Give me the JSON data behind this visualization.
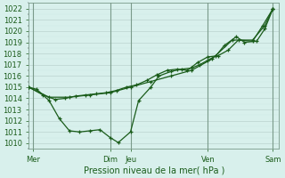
{
  "title": "",
  "xlabel": "Pression niveau de la mer( hPa )",
  "ylabel": "",
  "bg_color": "#d8f0ec",
  "plot_bg_color": "#d8f0ec",
  "grid_color": "#c0d8d4",
  "grid_minor_color": "#cce8e4",
  "line_color": "#1a5c1a",
  "marker_color": "#1a5c1a",
  "vline_color": "#7a9a8a",
  "spine_color": "#7a9a8a",
  "tick_color": "#1a5c1a",
  "ylim": [
    1009.5,
    1022.5
  ],
  "xlim": [
    0.0,
    6.15
  ],
  "yticks": [
    1010,
    1011,
    1012,
    1013,
    1014,
    1015,
    1016,
    1017,
    1018,
    1019,
    1020,
    1021,
    1022
  ],
  "xtick_positions": [
    0.1,
    2.0,
    2.5,
    4.4,
    6.0
  ],
  "xtick_labels": [
    "Mer",
    "Dim",
    "Jeu",
    "Ven",
    "Sam"
  ],
  "vlines": [
    0.1,
    2.0,
    2.5,
    4.4,
    6.0
  ],
  "series": [
    [
      0.0,
      1015.0,
      0.2,
      1014.8,
      0.5,
      1013.8,
      0.75,
      1012.2,
      1.0,
      1011.1,
      1.25,
      1011.0,
      1.5,
      1011.1,
      1.75,
      1011.2,
      2.0,
      1010.5,
      2.2,
      1010.05,
      2.5,
      1011.0,
      2.7,
      1013.8,
      3.0,
      1015.0,
      3.2,
      1016.0,
      3.5,
      1016.4,
      3.75,
      1016.6,
      4.0,
      1016.7,
      4.2,
      1017.0,
      4.4,
      1017.4,
      4.6,
      1017.8,
      4.8,
      1018.7,
      5.1,
      1019.5,
      5.3,
      1019.0,
      5.6,
      1019.1,
      5.8,
      1020.2,
      6.0,
      1022.0
    ],
    [
      0.0,
      1015.0,
      0.35,
      1014.3,
      0.65,
      1013.9,
      0.9,
      1014.0,
      1.15,
      1014.2,
      1.4,
      1014.3,
      1.65,
      1014.4,
      1.9,
      1014.5,
      2.15,
      1014.7,
      2.4,
      1015.0,
      2.65,
      1015.2,
      2.9,
      1015.6,
      3.15,
      1016.1,
      3.4,
      1016.5,
      3.65,
      1016.6,
      3.9,
      1016.5,
      4.15,
      1017.2,
      4.4,
      1017.7,
      4.65,
      1017.8,
      4.9,
      1018.3,
      5.15,
      1019.2,
      5.5,
      1019.1,
      5.75,
      1020.5,
      6.0,
      1022.0
    ],
    [
      0.0,
      1015.0,
      0.5,
      1014.1,
      1.0,
      1014.1,
      1.5,
      1014.3,
      2.0,
      1014.5,
      2.5,
      1015.0,
      3.0,
      1015.5,
      3.5,
      1016.0,
      4.0,
      1016.5,
      4.5,
      1017.5,
      5.0,
      1019.2,
      5.5,
      1019.2,
      5.8,
      1020.5,
      6.0,
      1022.0
    ]
  ]
}
